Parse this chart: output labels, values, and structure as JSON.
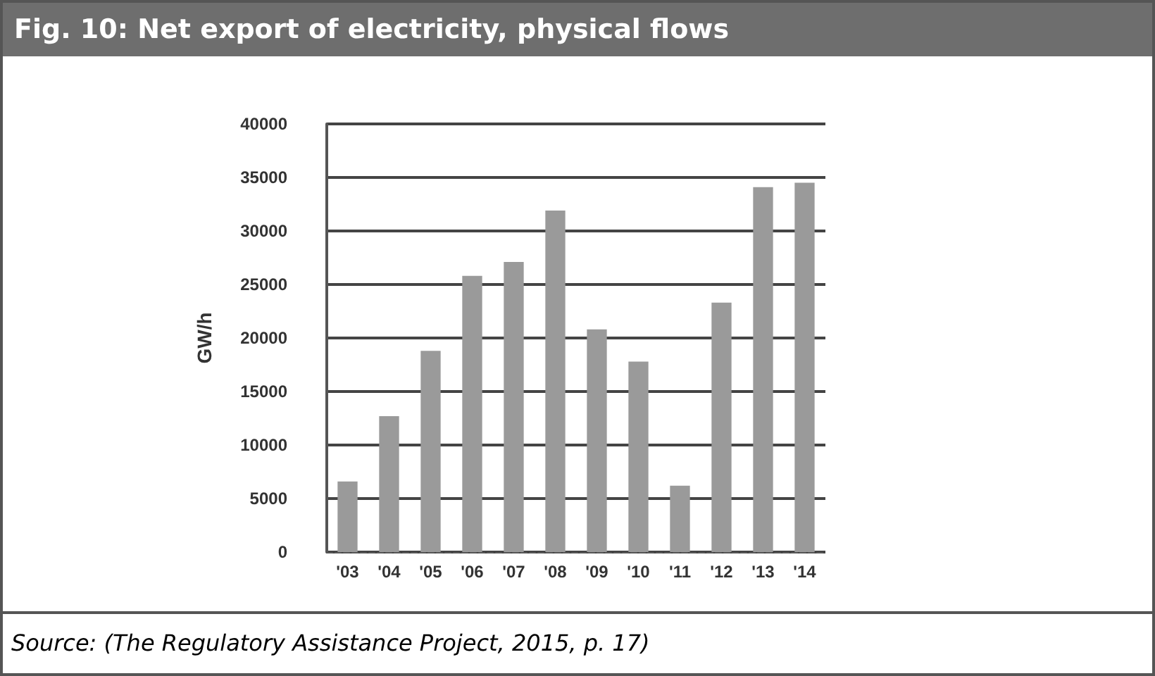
{
  "chart_data": {
    "type": "bar",
    "title": "Fig. 10: Net export of electricity, physical flows",
    "ylabel": "GW/h",
    "categories": [
      "'03",
      "'04",
      "'05",
      "'06",
      "'07",
      "'08",
      "'09",
      "'10",
      "'11",
      "'12",
      "'13",
      "'14"
    ],
    "values": [
      6600,
      12700,
      18800,
      25800,
      27100,
      31900,
      20800,
      17800,
      6200,
      23300,
      34100,
      34500
    ],
    "color": "#9a9a9a",
    "ylim": [
      0,
      40000
    ],
    "yticks": [
      0,
      5000,
      10000,
      15000,
      20000,
      25000,
      30000,
      35000,
      40000
    ],
    "grid": "y",
    "annotations": [
      "Source: (The Regulatory Assistance Project, 2015, p. 17)"
    ]
  }
}
